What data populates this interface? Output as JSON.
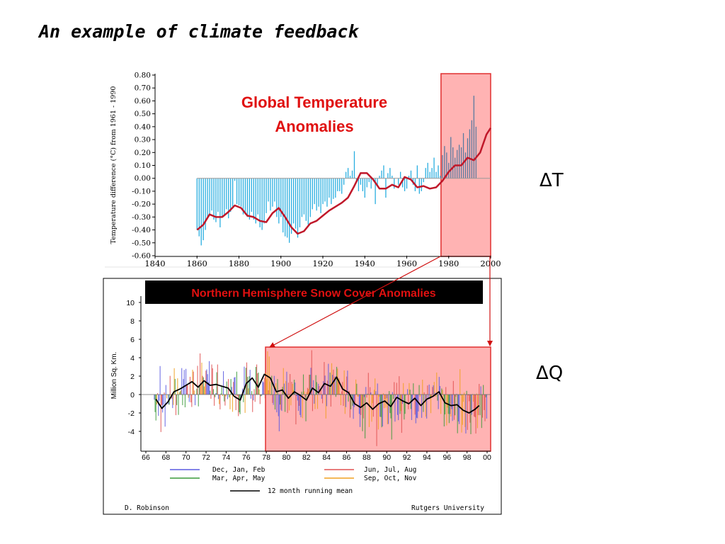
{
  "slide": {
    "title": "An example of climate feedback",
    "delta_t": "ΔT",
    "delta_q": "ΔQ"
  },
  "colors": {
    "highlight_fill": "#ffb3b3",
    "highlight_stroke": "#e03030",
    "temp_bars": "#29aee0",
    "temp_smooth": "#c0182a",
    "title_red": "#e01010",
    "arrow": "#d01010"
  },
  "chart_data": [
    {
      "type": "bar",
      "title": "Global Temperature Anomalies",
      "ylabel": "Temperature difference (°C) from 1961 - 1990",
      "xlim": [
        1840,
        2000
      ],
      "ylim": [
        -0.6,
        0.8
      ],
      "x_ticks": [
        "1840",
        "1860",
        "1880",
        "1900",
        "1920",
        "1940",
        "1960",
        "1980",
        "2000"
      ],
      "y_ticks": [
        "0.80",
        "0.70",
        "0.60",
        "0.50",
        "0.40",
        "0.30",
        "0.20",
        "0.10",
        "0.00",
        "-0.10",
        "-0.20",
        "-0.30",
        "-0.40",
        "-0.50",
        "-0.60"
      ],
      "highlight_range": [
        1977,
        2000
      ],
      "smoothed": {
        "x": [
          1860,
          1863,
          1866,
          1869,
          1872,
          1875,
          1878,
          1881,
          1884,
          1887,
          1890,
          1893,
          1896,
          1899,
          1902,
          1905,
          1908,
          1911,
          1914,
          1917,
          1920,
          1923,
          1926,
          1929,
          1932,
          1935,
          1938,
          1941,
          1944,
          1947,
          1950,
          1953,
          1956,
          1959,
          1962,
          1965,
          1968,
          1971,
          1974,
          1977,
          1980,
          1983,
          1986,
          1989,
          1992,
          1995,
          1998,
          2000
        ],
        "y": [
          -0.4,
          -0.36,
          -0.28,
          -0.3,
          -0.3,
          -0.26,
          -0.21,
          -0.23,
          -0.29,
          -0.3,
          -0.33,
          -0.34,
          -0.27,
          -0.23,
          -0.3,
          -0.38,
          -0.43,
          -0.41,
          -0.35,
          -0.33,
          -0.29,
          -0.25,
          -0.22,
          -0.19,
          -0.15,
          -0.06,
          0.04,
          0.04,
          -0.01,
          -0.08,
          -0.08,
          -0.05,
          -0.07,
          0.01,
          -0.01,
          -0.07,
          -0.06,
          -0.08,
          -0.07,
          -0.02,
          0.05,
          0.1,
          0.1,
          0.16,
          0.14,
          0.2,
          0.34,
          0.39
        ]
      },
      "annual_values": [
        -0.4,
        -0.45,
        -0.52,
        -0.48,
        -0.4,
        -0.3,
        -0.28,
        -0.25,
        -0.32,
        -0.34,
        -0.26,
        -0.38,
        -0.3,
        -0.28,
        -0.24,
        -0.31,
        -0.26,
        -0.22,
        -0.02,
        -0.2,
        -0.21,
        -0.22,
        -0.28,
        -0.28,
        -0.3,
        -0.32,
        -0.26,
        -0.32,
        -0.35,
        -0.28,
        -0.38,
        -0.4,
        -0.35,
        -0.27,
        -0.18,
        -0.25,
        -0.22,
        -0.18,
        -0.3,
        -0.35,
        -0.3,
        -0.42,
        -0.45,
        -0.46,
        -0.5,
        -0.43,
        -0.35,
        -0.39,
        -0.46,
        -0.38,
        -0.3,
        -0.28,
        -0.33,
        -0.36,
        -0.3,
        -0.24,
        -0.2,
        -0.25,
        -0.22,
        -0.27,
        -0.2,
        -0.18,
        -0.22,
        -0.15,
        -0.2,
        -0.16,
        -0.15,
        -0.1,
        -0.1,
        -0.12,
        -0.05,
        0.05,
        0.08,
        0.02,
        0.06,
        0.21,
        -0.02,
        -0.1,
        -0.05,
        -0.1,
        -0.15,
        -0.07,
        -0.03,
        -0.08,
        -0.02,
        -0.2,
        -0.05,
        0.02,
        0.06,
        0.1,
        -0.15,
        0.04,
        0.08,
        0.02,
        -0.08,
        0.0,
        -0.05,
        0.05,
        -0.07,
        -0.1,
        -0.08,
        0.02,
        0.06,
        -0.05,
        -0.1,
        0.1,
        -0.12,
        -0.1,
        -0.03,
        0.08,
        0.12,
        0.05,
        0.08,
        0.16,
        0.05,
        0.1,
        0.02,
        0.18,
        0.25,
        0.2,
        0.12,
        0.32,
        0.24,
        0.16,
        0.22,
        0.26,
        0.24,
        0.35,
        0.2,
        0.31,
        0.38,
        0.45,
        0.64,
        0.4
      ]
    },
    {
      "type": "bar",
      "title": "Northern Hemisphere Snow Cover Anomalies",
      "ylabel": "Million Sq. Km.",
      "ylim": [
        -5,
        10
      ],
      "y_ticks": [
        "10",
        "8",
        "6",
        "4",
        "2",
        "0",
        "-2",
        "-4"
      ],
      "x_ticks": [
        "66",
        "68",
        "70",
        "72",
        "74",
        "76",
        "78",
        "80",
        "82",
        "84",
        "86",
        "88",
        "90",
        "92",
        "94",
        "96",
        "98",
        "00"
      ],
      "highlight_range": [
        78,
        100
      ],
      "legend": [
        {
          "label": "Dec, Jan, Feb",
          "color": "#5b5be0"
        },
        {
          "label": "Jun, Jul, Aug",
          "color": "#e05050"
        },
        {
          "label": "Mar, Apr, May",
          "color": "#3a9a3a"
        },
        {
          "label": "Sep, Oct, Nov",
          "color": "#f0a020"
        },
        {
          "label": "12 month running mean",
          "color": "#000000"
        }
      ],
      "credit_left": "D. Robinson",
      "credit_right": "Rutgers University",
      "running_mean": {
        "x": [
          67,
          67.6,
          68.2,
          68.8,
          69.4,
          70,
          70.6,
          71.2,
          71.8,
          72.4,
          73,
          73.6,
          74.2,
          74.8,
          75.4,
          76,
          76.6,
          77.2,
          77.8,
          78.4,
          79,
          79.6,
          80.2,
          80.8,
          81.4,
          82,
          82.6,
          83.2,
          83.8,
          84.4,
          85,
          85.6,
          86.2,
          86.8,
          87.4,
          88,
          88.6,
          89.2,
          89.8,
          90.4,
          91,
          91.6,
          92.2,
          92.8,
          93.4,
          94,
          94.6,
          95.2,
          95.8,
          96.4,
          97,
          97.6,
          98.2,
          98.8,
          99.2
        ],
        "y": [
          -0.5,
          -1.5,
          -0.8,
          0.3,
          0.6,
          1.0,
          1.4,
          0.8,
          1.5,
          1.0,
          1.1,
          0.9,
          0.7,
          -0.2,
          -0.6,
          1.2,
          1.8,
          0.8,
          2.2,
          1.8,
          0.3,
          0.5,
          -0.4,
          0.3,
          -0.1,
          -0.6,
          0.7,
          0.2,
          1.2,
          0.9,
          1.9,
          0.6,
          0.2,
          -1.0,
          -1.4,
          -0.9,
          -1.6,
          -1.0,
          -0.7,
          -1.3,
          -0.3,
          -0.7,
          -1.0,
          -0.4,
          -1.2,
          -0.5,
          -0.2,
          0.3,
          -0.9,
          -1.2,
          -1.1,
          -1.7,
          -2.0,
          -1.6,
          -1.2
        ]
      }
    }
  ]
}
